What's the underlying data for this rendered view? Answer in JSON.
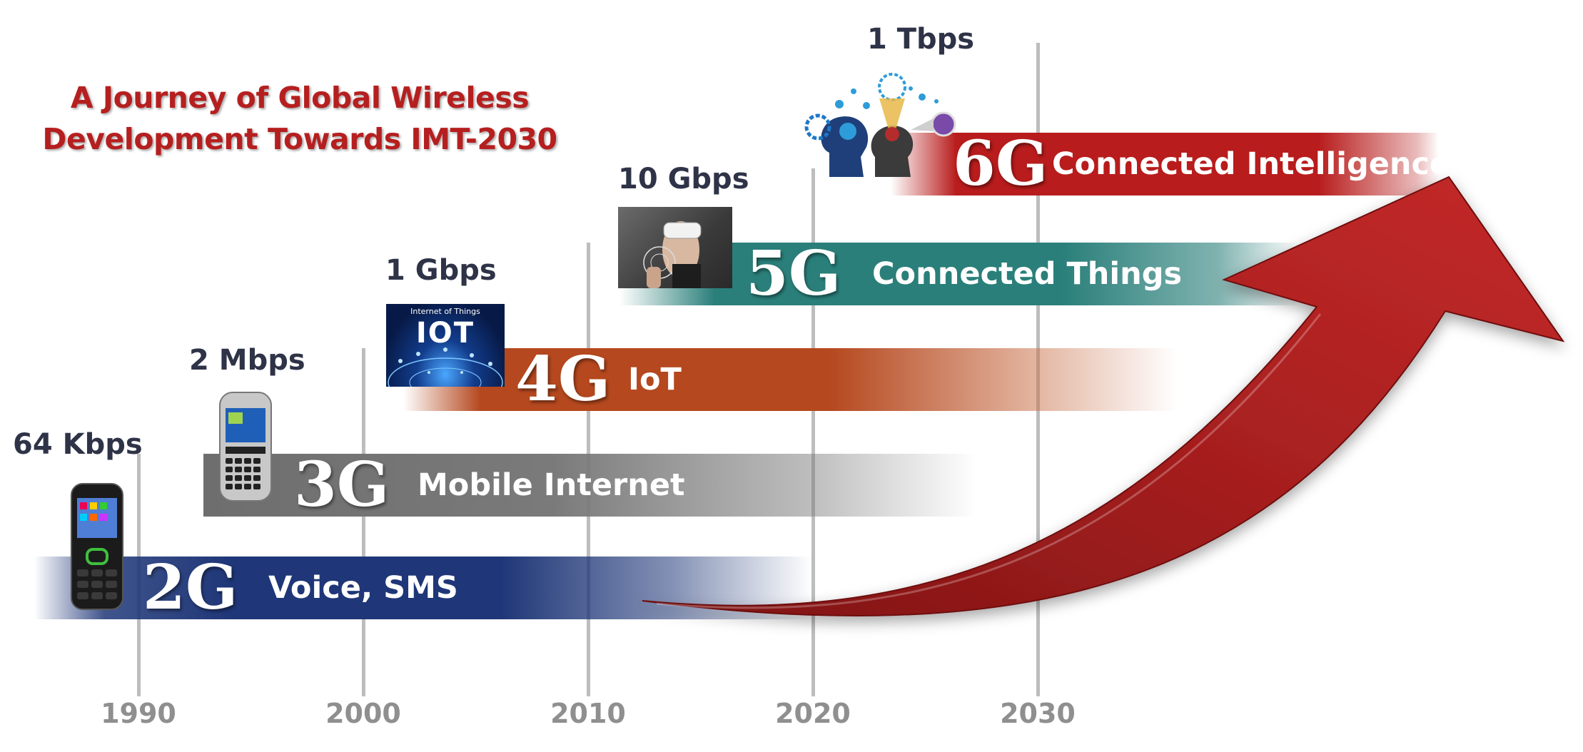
{
  "title": {
    "line1": "A Journey of Global Wireless",
    "line2": "Development Towards IMT-2030"
  },
  "years": [
    "1990",
    "2000",
    "2010",
    "2020",
    "2030"
  ],
  "generations": [
    {
      "gen": "2G",
      "label": "Voice, SMS",
      "speed": "64 Kbps",
      "color": "#1f3778"
    },
    {
      "gen": "3G",
      "label": "Mobile Internet",
      "speed": "2 Mbps",
      "color": "#6e6e6e"
    },
    {
      "gen": "4G",
      "label": "IoT",
      "speed": "1 Gbps",
      "color": "#b5481e"
    },
    {
      "gen": "5G",
      "label": "Connected Things",
      "speed": "10 Gbps",
      "color": "#2a7f7a"
    },
    {
      "gen": "6G",
      "label": "Connected Intelligence",
      "speed": "1 Tbps",
      "color": "#b81c1c"
    }
  ],
  "iot_image_text": {
    "small": "Internet of Things",
    "big": "IOT"
  },
  "arrow_color": "#a71f1f"
}
